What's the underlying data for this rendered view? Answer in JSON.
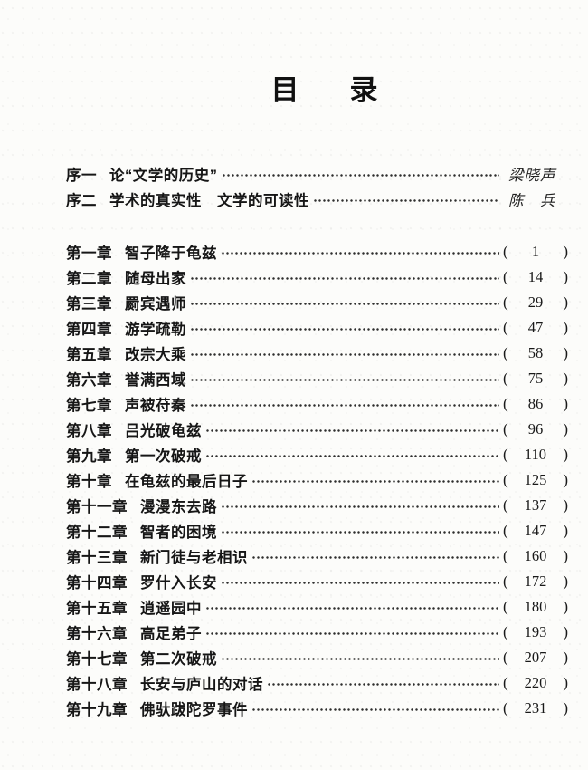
{
  "page_title": {
    "text": "目　录",
    "chars": [
      "目",
      "录"
    ]
  },
  "punctuation": {
    "paren_open": "(",
    "paren_close": ")"
  },
  "prefaces": [
    {
      "label": "序一",
      "title": "论“文学的历史”",
      "author": "梁晓声"
    },
    {
      "label": "序二",
      "title": "学术的真实性　文学的可读性",
      "author": "陈　兵"
    }
  ],
  "chapters": [
    {
      "label": "第一章",
      "title": "智子降于龟兹",
      "page": "1"
    },
    {
      "label": "第二章",
      "title": "随母出家",
      "page": "14"
    },
    {
      "label": "第三章",
      "title": "罽宾遇师",
      "page": "29"
    },
    {
      "label": "第四章",
      "title": "游学疏勒",
      "page": "47"
    },
    {
      "label": "第五章",
      "title": "改宗大乘",
      "page": "58"
    },
    {
      "label": "第六章",
      "title": "誉满西域",
      "page": "75"
    },
    {
      "label": "第七章",
      "title": "声被苻秦",
      "page": "86"
    },
    {
      "label": "第八章",
      "title": "吕光破龟兹",
      "page": "96"
    },
    {
      "label": "第九章",
      "title": "第一次破戒",
      "page": "110"
    },
    {
      "label": "第十章",
      "title": "在龟兹的最后日子",
      "page": "125"
    },
    {
      "label": "第十一章",
      "title": "漫漫东去路",
      "page": "137"
    },
    {
      "label": "第十二章",
      "title": "智者的困境",
      "page": "147"
    },
    {
      "label": "第十三章",
      "title": "新门徒与老相识",
      "page": "160"
    },
    {
      "label": "第十四章",
      "title": "罗什入长安",
      "page": "172"
    },
    {
      "label": "第十五章",
      "title": "逍遥园中",
      "page": "180"
    },
    {
      "label": "第十六章",
      "title": "高足弟子",
      "page": "193"
    },
    {
      "label": "第十七章",
      "title": "第二次破戒",
      "page": "207"
    },
    {
      "label": "第十八章",
      "title": "长安与庐山的对话",
      "page": "220"
    },
    {
      "label": "第十九章",
      "title": "佛驮跋陀罗事件",
      "page": "231"
    }
  ]
}
